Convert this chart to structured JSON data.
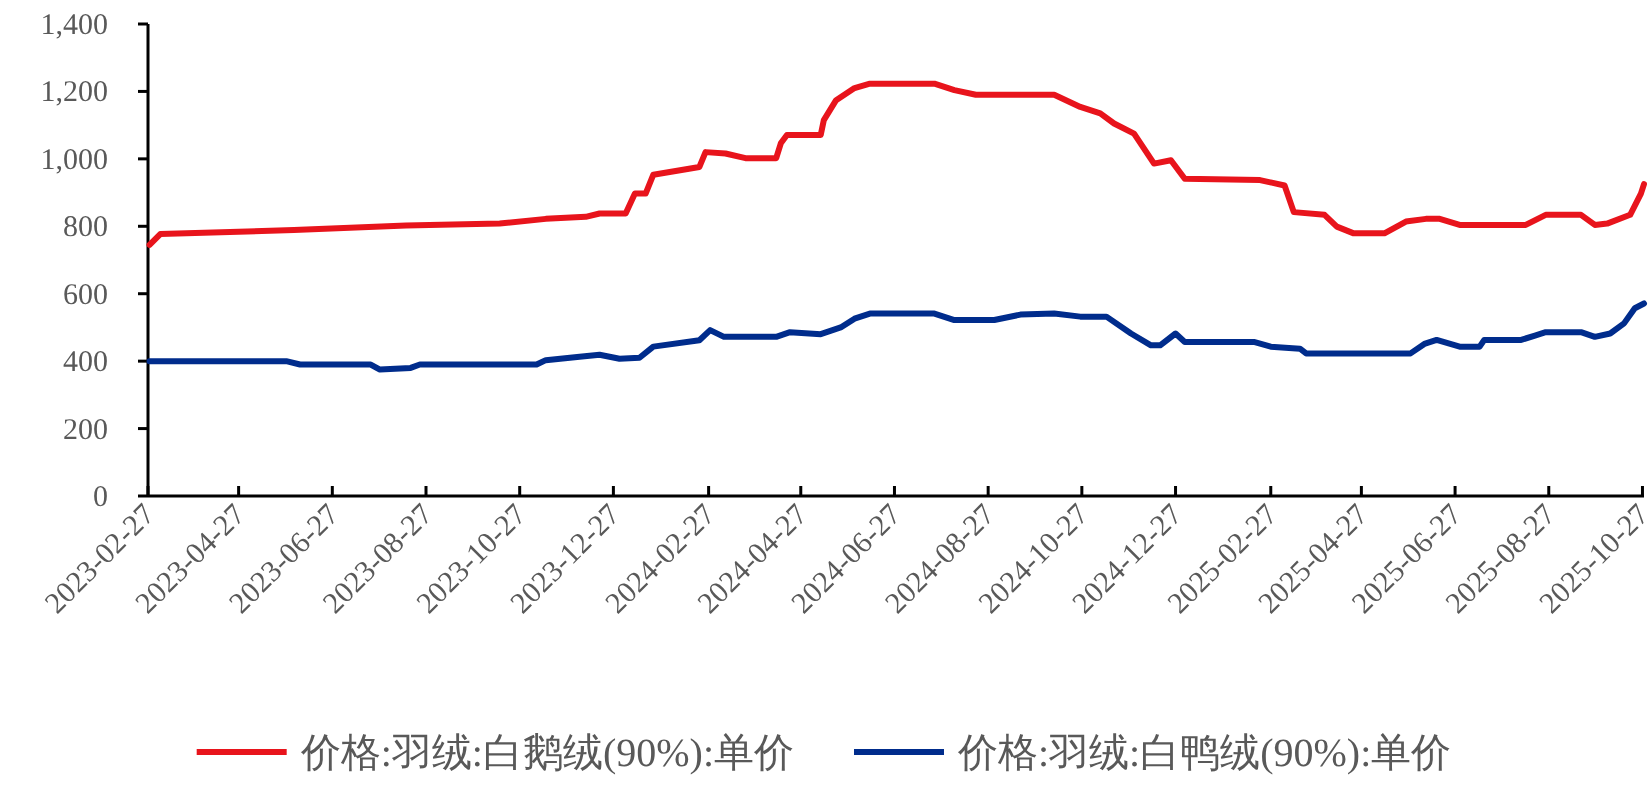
{
  "chart_data": {
    "type": "line",
    "x": [
      "2023-02-28",
      "2023-03-07",
      "2023-06-02",
      "2023-08-14",
      "2023-10-14",
      "2023-11-13",
      "2023-12-09",
      "2023-12-18",
      "2024-01-04",
      "2024-01-10",
      "2024-01-17",
      "2024-01-22",
      "2024-02-21",
      "2024-02-25",
      "2024-03-09",
      "2024-03-22",
      "2024-04-11",
      "2024-04-14",
      "2024-04-18",
      "2024-05-10",
      "2024-05-12",
      "2024-05-20",
      "2024-06-01",
      "2024-06-11",
      "2024-07-23",
      "2024-08-05",
      "2024-08-19",
      "2024-10-09",
      "2024-10-26",
      "2024-11-08",
      "2024-11-17",
      "2024-11-30",
      "2024-12-13",
      "2024-12-24",
      "2025-01-02",
      "2025-02-20",
      "2025-03-08",
      "2025-03-14",
      "2025-04-03",
      "2025-04-11",
      "2025-04-22",
      "2025-05-12",
      "2025-05-26",
      "2025-06-08",
      "2025-06-17",
      "2025-06-30",
      "2025-08-12",
      "2025-08-25",
      "2025-09-17",
      "2025-09-26",
      "2025-10-04",
      "2025-10-19",
      "2025-10-26",
      "2025-10-28"
    ],
    "series": [
      {
        "name": "价格:羽绒:白鹅绒(90%):单价",
        "color": "#e8141c",
        "values": [
          745,
          777,
          789,
          802,
          808,
          822,
          828,
          838,
          838,
          897,
          897,
          953,
          976,
          1020,
          1016,
          1002,
          1002,
          1046,
          1071,
          1071,
          1115,
          1174,
          1210,
          1223,
          1223,
          1204,
          1190,
          1190,
          1154,
          1135,
          1105,
          1075,
          986,
          996,
          941,
          937,
          921,
          842,
          834,
          799,
          779,
          779,
          814,
          822,
          822,
          804,
          804,
          834,
          834,
          804,
          808,
          834,
          897,
          925
        ]
      },
      {
        "name": "价格:羽绒:白鸭绒(90%):单价",
        "color": "#002c8c",
        "x": [
          "2023-02-28",
          "2023-05-28",
          "2023-06-06",
          "2023-07-22",
          "2023-07-28",
          "2023-08-17",
          "2023-08-23",
          "2023-11-07",
          "2023-11-13",
          "2023-12-05",
          "2023-12-18",
          "2023-12-31",
          "2024-01-13",
          "2024-01-22",
          "2024-02-21",
          "2024-02-28",
          "2024-03-08",
          "2024-04-11",
          "2024-04-20",
          "2024-05-10",
          "2024-05-23",
          "2024-06-01",
          "2024-06-11",
          "2024-07-23",
          "2024-08-05",
          "2024-08-31",
          "2024-09-17",
          "2024-10-09",
          "2024-10-26",
          "2024-11-12",
          "2024-11-28",
          "2024-12-11",
          "2024-12-17",
          "2024-12-27",
          "2025-01-02",
          "2025-02-16",
          "2025-02-27",
          "2025-03-18",
          "2025-03-22",
          "2025-05-29",
          "2025-06-07",
          "2025-06-15",
          "2025-06-30",
          "2025-07-13",
          "2025-07-16",
          "2025-08-09",
          "2025-08-18",
          "2025-08-25",
          "2025-09-17",
          "2025-09-26",
          "2025-10-06",
          "2025-10-15",
          "2025-10-22",
          "2025-10-28"
        ],
        "values": [
          400,
          400,
          390,
          390,
          375,
          380,
          390,
          390,
          403,
          413,
          419,
          407,
          410,
          443,
          462,
          492,
          472,
          472,
          486,
          480,
          500,
          526,
          541,
          541,
          522,
          522,
          538,
          541,
          532,
          532,
          482,
          447,
          447,
          482,
          457,
          457,
          443,
          437,
          423,
          423,
          451,
          463,
          443,
          443,
          463,
          463,
          476,
          486,
          486,
          472,
          482,
          512,
          557,
          571
        ]
      }
    ],
    "xlim": [
      "2023-02-27",
      "2025-10-28"
    ],
    "xticks": [
      "2023-02-27",
      "2023-04-27",
      "2023-06-27",
      "2023-08-27",
      "2023-10-27",
      "2023-12-27",
      "2024-02-27",
      "2024-04-27",
      "2024-06-27",
      "2024-08-27",
      "2024-10-27",
      "2024-12-27",
      "2025-02-27",
      "2025-04-27",
      "2025-06-27",
      "2025-08-27",
      "2025-10-27"
    ],
    "ylim": [
      0,
      1400
    ],
    "yticks": [
      0,
      200,
      400,
      600,
      800,
      {
        "value": 1000,
        "label": "1,000"
      },
      {
        "value": 1200,
        "label": "1,200"
      },
      {
        "value": 1400,
        "label": "1,400"
      }
    ],
    "grid": false,
    "legend": "bottom",
    "marker": "none",
    "line_style": "solid"
  }
}
